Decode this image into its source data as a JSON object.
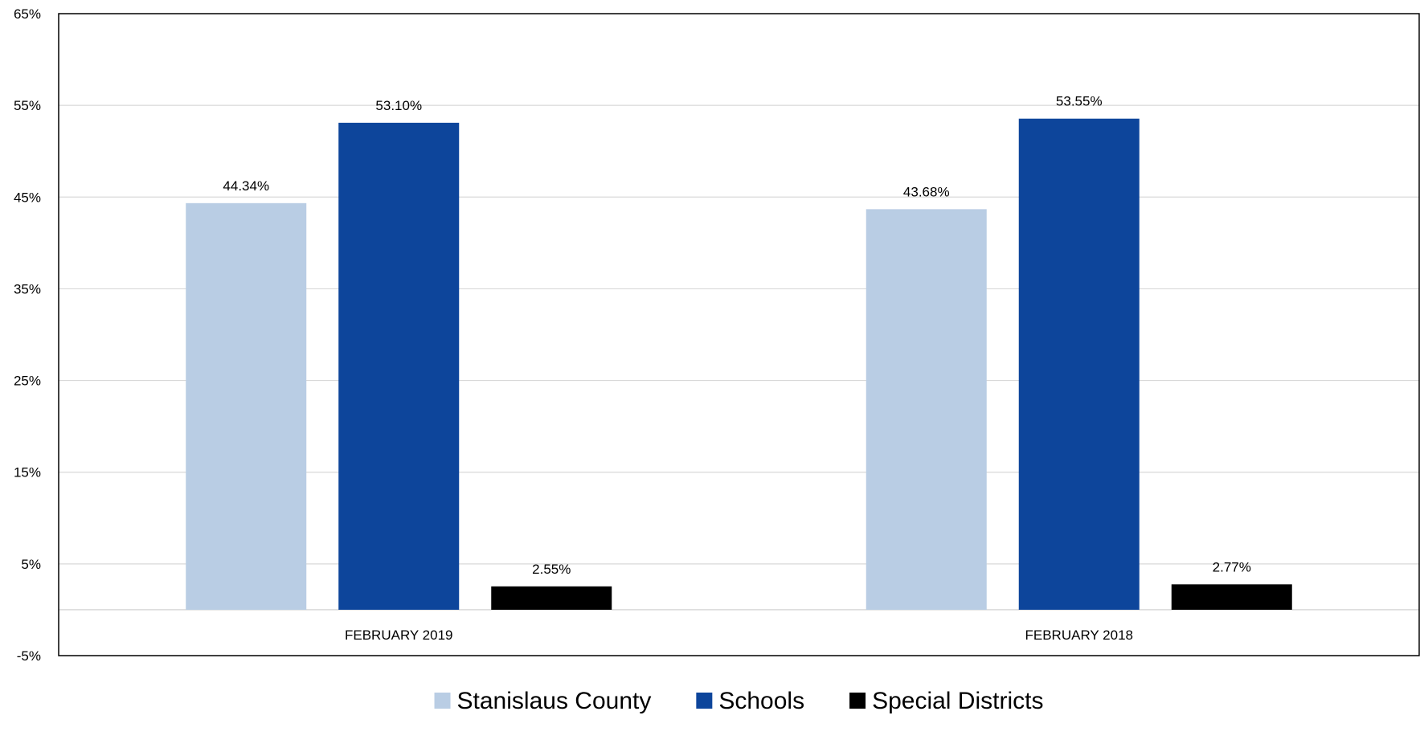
{
  "chart_data": {
    "type": "bar",
    "categories": [
      "FEBRUARY 2019",
      "FEBRUARY 2018"
    ],
    "series": [
      {
        "name": "Stanislaus County",
        "values": [
          44.34,
          43.68
        ],
        "labels": [
          "44.34%",
          "43.68%"
        ],
        "color": "#B9CDE4"
      },
      {
        "name": "Schools",
        "values": [
          53.1,
          53.55
        ],
        "labels": [
          "53.10%",
          "53.55%"
        ],
        "color": "#0D459B"
      },
      {
        "name": "Special Districts",
        "values": [
          2.55,
          2.77
        ],
        "labels": [
          "2.55%",
          "2.77%"
        ],
        "color": "#000000"
      }
    ],
    "ylim": [
      -5,
      65
    ],
    "yticks": [
      65,
      55,
      45,
      35,
      25,
      15,
      5,
      -5
    ],
    "ytick_labels": [
      "65%",
      "55%",
      "45%",
      "35%",
      "25%",
      "15%",
      "5%",
      "-5%"
    ],
    "grid": true,
    "legend_position": "bottom-center",
    "gridline_color": "#D9D9D9"
  }
}
